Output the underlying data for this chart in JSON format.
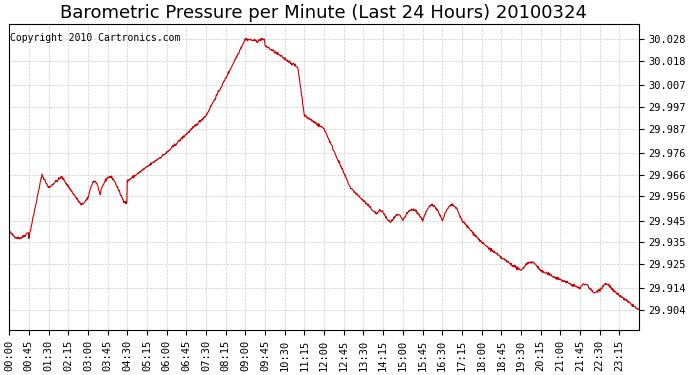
{
  "title": "Barometric Pressure per Minute (Last 24 Hours) 20100324",
  "copyright_text": "Copyright 2010 Cartronics.com",
  "line_color": "#cc0000",
  "background_color": "#ffffff",
  "grid_color": "#cccccc",
  "yticks": [
    29.904,
    29.914,
    29.925,
    29.935,
    29.945,
    29.956,
    29.966,
    29.976,
    29.987,
    29.997,
    30.007,
    30.018,
    30.028
  ],
  "ylim": [
    29.895,
    30.035
  ],
  "xtick_labels": [
    "00:00",
    "00:45",
    "01:30",
    "02:15",
    "03:00",
    "03:45",
    "04:30",
    "05:15",
    "06:00",
    "06:45",
    "07:30",
    "08:15",
    "09:00",
    "09:45",
    "10:30",
    "11:15",
    "12:00",
    "12:45",
    "13:30",
    "14:15",
    "15:00",
    "15:45",
    "16:30",
    "17:15",
    "18:00",
    "18:45",
    "19:30",
    "20:15",
    "21:00",
    "21:45",
    "22:30",
    "23:15"
  ],
  "title_fontsize": 13,
  "tick_fontsize": 7.5,
  "copyright_fontsize": 7
}
